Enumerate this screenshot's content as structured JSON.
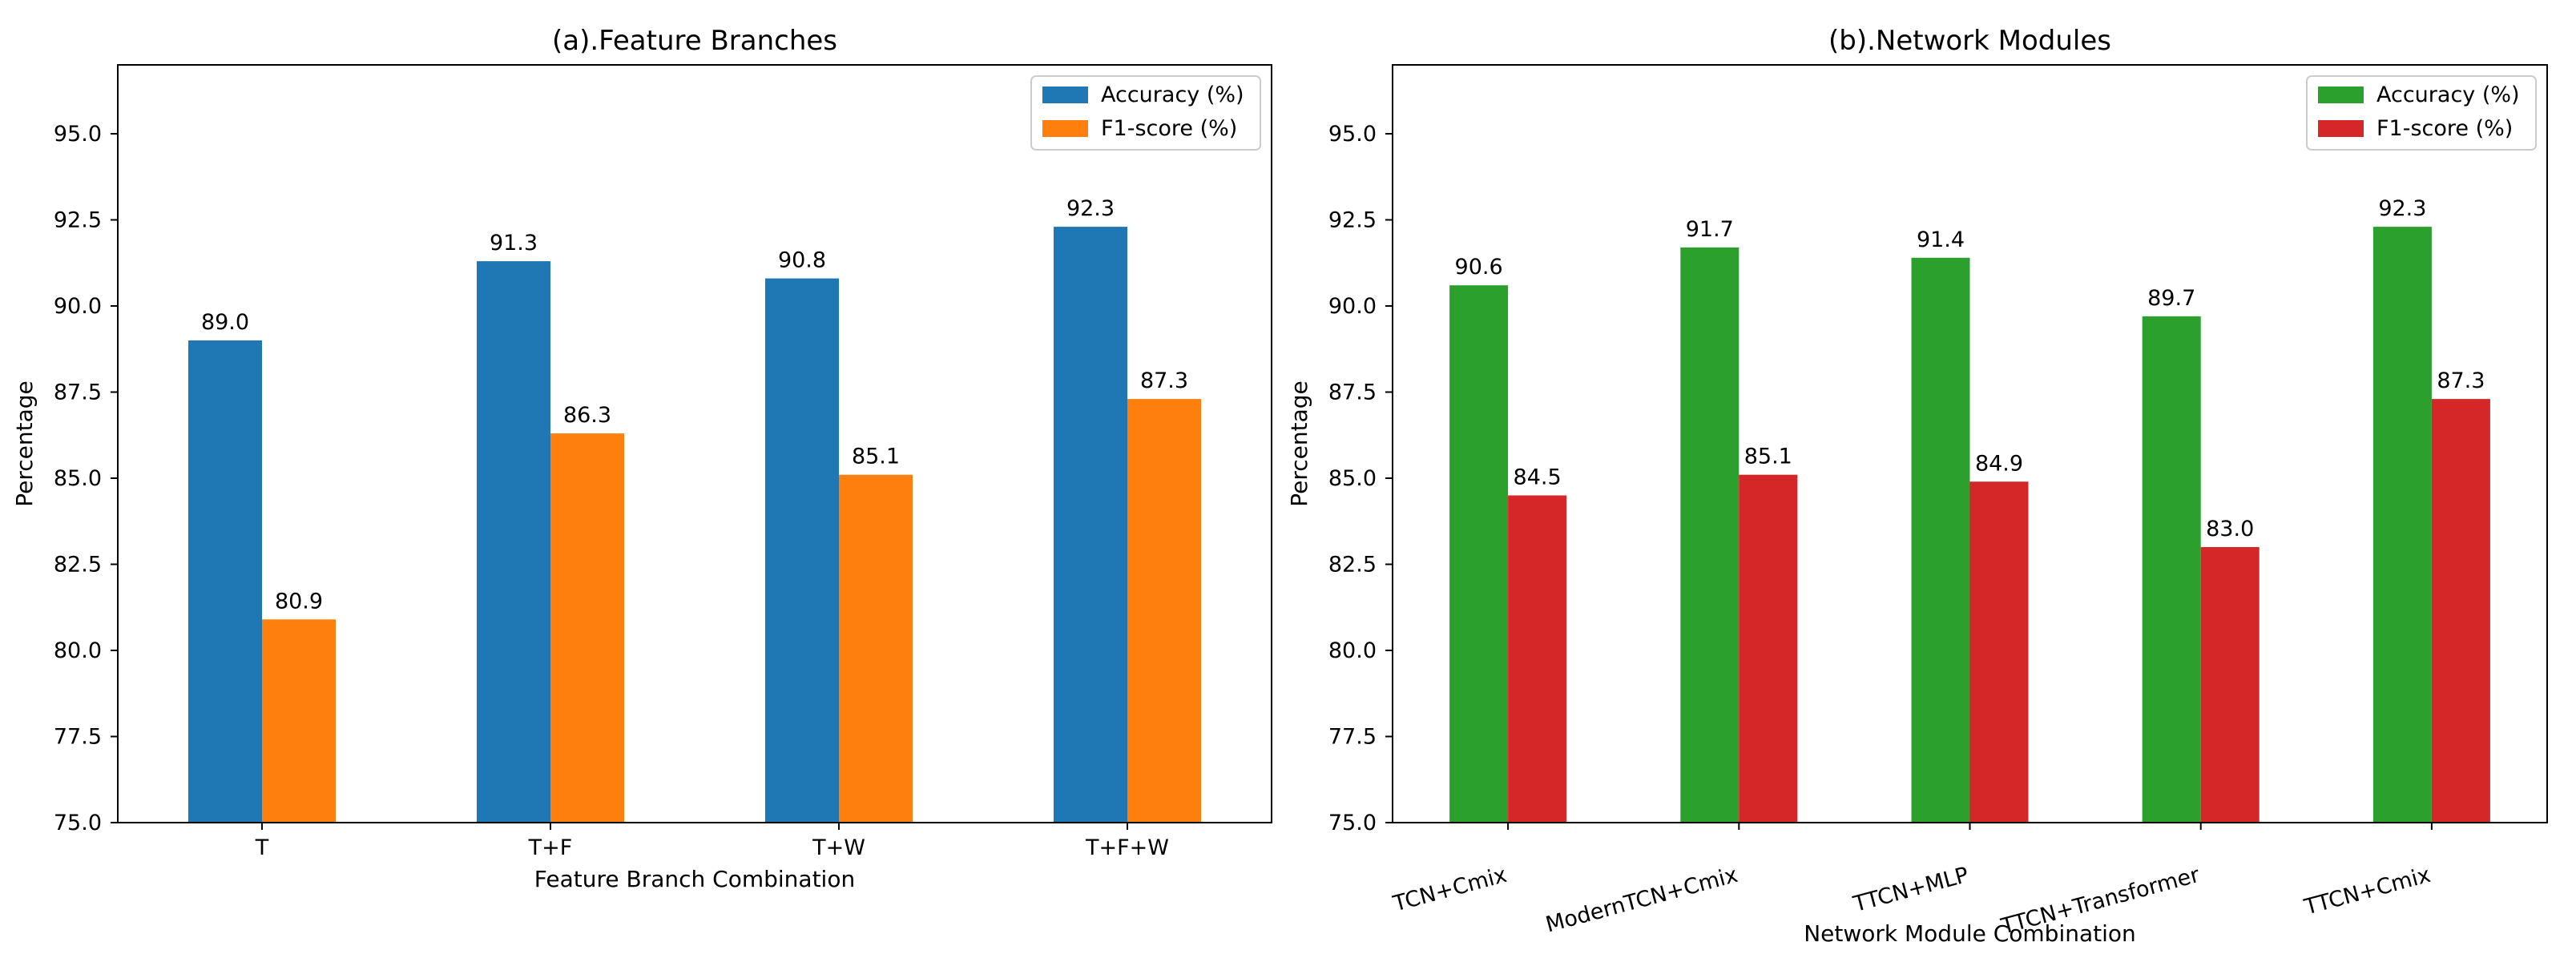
{
  "chart_data": [
    {
      "type": "bar",
      "title": "(a).Feature Branches",
      "xlabel": "Feature Branch Combination",
      "ylabel": "Percentage",
      "ylim": [
        75.0,
        97.0
      ],
      "yticks": [
        "75.0",
        "77.5",
        "80.0",
        "82.5",
        "85.0",
        "87.5",
        "90.0",
        "92.5",
        "95.0"
      ],
      "categories": [
        "T",
        "T+F",
        "T+W",
        "T+F+W"
      ],
      "legend_position": "top-right",
      "series": [
        {
          "name": "Accuracy (%)",
          "color": "#1f77b4",
          "values": [
            89.0,
            91.3,
            90.8,
            92.3
          ],
          "labels": [
            "89.0",
            "91.3",
            "90.8",
            "92.3"
          ]
        },
        {
          "name": "F1-score (%)",
          "color": "#ff7f0e",
          "values": [
            80.9,
            86.3,
            85.1,
            87.3
          ],
          "labels": [
            "80.9",
            "86.3",
            "85.1",
            "87.3"
          ]
        }
      ],
      "xtick_rotation": 0
    },
    {
      "type": "bar",
      "title": "(b).Network Modules",
      "xlabel": "Network Module Combination",
      "ylabel": "Percentage",
      "ylim": [
        75.0,
        97.0
      ],
      "yticks": [
        "75.0",
        "77.5",
        "80.0",
        "82.5",
        "85.0",
        "87.5",
        "90.0",
        "92.5",
        "95.0"
      ],
      "categories": [
        "TCN+Cmix",
        "ModernTCN+Cmix",
        "TTCN+MLP",
        "TTCN+Transformer",
        "TTCN+Cmix"
      ],
      "legend_position": "top-right",
      "series": [
        {
          "name": "Accuracy (%)",
          "color": "#2ca02c",
          "values": [
            90.6,
            91.7,
            91.4,
            89.7,
            92.3
          ],
          "labels": [
            "90.6",
            "91.7",
            "91.4",
            "89.7",
            "92.3"
          ]
        },
        {
          "name": "F1-score (%)",
          "color": "#d62728",
          "values": [
            84.5,
            85.1,
            84.9,
            83.0,
            87.3
          ],
          "labels": [
            "84.5",
            "85.1",
            "84.9",
            "83.0",
            "87.3"
          ]
        }
      ],
      "xtick_rotation": -15
    }
  ]
}
